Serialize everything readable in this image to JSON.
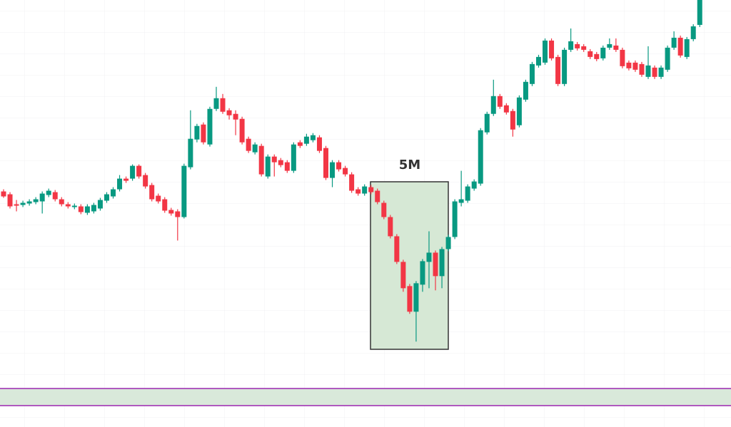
{
  "chart_data": {
    "type": "candlestick",
    "annotation": "5M",
    "up_color": "#089981",
    "down_color": "#f23645",
    "ylim": [
      0,
      600
    ],
    "open": [
      331,
      327,
      313,
      312,
      314,
      316,
      317,
      326,
      330,
      320,
      313,
      309,
      310,
      301,
      303,
      307,
      318,
      324,
      334,
      349,
      349,
      367,
      354,
      340,
      325,
      320,
      305,
      303,
      295,
      365,
      404,
      425,
      397,
      447,
      462,
      445,
      440,
      433,
      405,
      386,
      395,
      352,
      380,
      375,
      372,
      360,
      400,
      398,
      403,
      407,
      392,
      350,
      372,
      364,
      355,
      334,
      328,
      337,
      332,
      315,
      295,
      268,
      232,
      198,
      162,
      200,
      232,
      245,
      212,
      250,
      267,
      315,
      318,
      335,
      342,
      414,
      440,
      465,
      452,
      444,
      424,
      460,
      482,
      508,
      512,
      543,
      520,
      482,
      530,
      538,
      535,
      528,
      524,
      518,
      533,
      536,
      530,
      512,
      512,
      510,
      492,
      505,
      492,
      502,
      533,
      547,
      520,
      545,
      565
    ],
    "high": [
      334,
      330,
      319,
      318,
      320,
      323,
      331,
      335,
      333,
      323,
      316,
      314,
      313,
      313,
      315,
      322,
      330,
      337,
      354,
      352,
      369,
      369,
      357,
      343,
      328,
      323,
      308,
      306,
      370,
      445,
      426,
      428,
      450,
      478,
      468,
      448,
      445,
      436,
      408,
      400,
      398,
      383,
      383,
      378,
      375,
      400,
      403,
      412,
      413,
      410,
      395,
      375,
      375,
      367,
      358,
      337,
      341,
      340,
      335,
      318,
      298,
      271,
      235,
      201,
      205,
      236,
      275,
      248,
      253,
      270,
      320,
      360,
      341,
      348,
      420,
      443,
      488,
      468,
      455,
      447,
      466,
      488,
      513,
      523,
      546,
      546,
      523,
      533,
      560,
      541,
      538,
      531,
      527,
      536,
      546,
      546,
      533,
      515,
      515,
      513,
      535,
      508,
      508,
      536,
      556,
      550,
      548,
      566,
      600
    ],
    "low": [
      322,
      307,
      303,
      309,
      311,
      313,
      300,
      323,
      317,
      310,
      307,
      306,
      299,
      298,
      300,
      304,
      315,
      321,
      331,
      343,
      346,
      349,
      335,
      317,
      314,
      301,
      297,
      262,
      293,
      362,
      400,
      397,
      394,
      444,
      440,
      432,
      410,
      397,
      385,
      383,
      352,
      349,
      352,
      365,
      357,
      357,
      392,
      395,
      400,
      385,
      347,
      337,
      359,
      352,
      329,
      325,
      325,
      327,
      313,
      292,
      265,
      229,
      190,
      159,
      120,
      190,
      195,
      192,
      195,
      247,
      264,
      310,
      315,
      332,
      339,
      411,
      437,
      447,
      439,
      408,
      421,
      457,
      479,
      505,
      509,
      515,
      479,
      479,
      527,
      529,
      527,
      517,
      514,
      515,
      530,
      527,
      504,
      501,
      499,
      492,
      489,
      489,
      489,
      499,
      530,
      519,
      517,
      542,
      562
    ],
    "close": [
      324,
      310,
      311,
      315,
      317,
      320,
      328,
      332,
      320,
      313,
      310,
      311,
      302,
      310,
      312,
      319,
      327,
      334,
      349,
      346,
      367,
      352,
      338,
      320,
      317,
      304,
      300,
      295,
      367,
      405,
      423,
      400,
      447,
      462,
      443,
      438,
      432,
      400,
      388,
      397,
      355,
      380,
      372,
      368,
      360,
      397,
      395,
      408,
      410,
      388,
      350,
      372,
      362,
      355,
      332,
      328,
      338,
      330,
      316,
      295,
      268,
      232,
      195,
      162,
      202,
      233,
      245,
      212,
      250,
      267,
      317,
      320,
      338,
      345,
      417,
      440,
      465,
      450,
      442,
      418,
      463,
      485,
      510,
      520,
      543,
      518,
      482,
      530,
      542,
      532,
      530,
      520,
      517,
      533,
      538,
      530,
      507,
      504,
      502,
      495,
      508,
      492,
      505,
      533,
      547,
      522,
      545,
      563,
      600
    ]
  }
}
